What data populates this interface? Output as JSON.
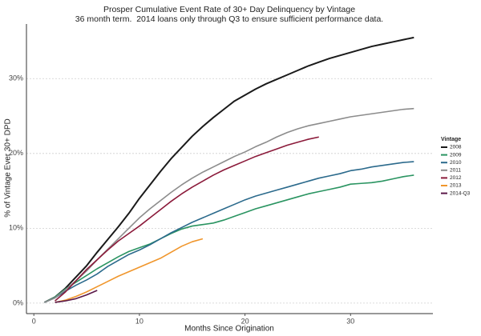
{
  "chart_data": {
    "type": "line",
    "title": "Prosper Cumulative Event Rate of 30+ Day Delinquency by Vintage",
    "subtitle": "36 month term.  2014 loans only through Q3 to ensure sufficient performance data.",
    "x_label": "Months Since Origination",
    "y_label": "% of Vintage Ever 30+ DPD",
    "legend_title": "Vintage",
    "legend": "right",
    "grid": true,
    "xlim": [
      -0.7,
      37.8
    ],
    "ylim": [
      -1.4,
      37.3
    ],
    "xticks": [
      0,
      10,
      20,
      30
    ],
    "yticks": [
      {
        "value": 0,
        "label": "0%"
      },
      {
        "value": 10,
        "label": "10%"
      },
      {
        "value": 20,
        "label": "20%"
      },
      {
        "value": 30,
        "label": "30%"
      }
    ],
    "x": [
      1,
      2,
      3,
      4,
      5,
      6,
      7,
      8,
      9,
      10,
      11,
      12,
      13,
      14,
      15,
      16,
      17,
      18,
      19,
      20,
      21,
      22,
      23,
      24,
      25,
      26,
      27,
      28,
      29,
      30,
      31,
      32,
      33,
      34,
      35,
      36
    ],
    "series": [
      {
        "name": "2008",
        "color": "#1a1a1a",
        "values": [
          0.1,
          0.8,
          2,
          3.5,
          5,
          6.8,
          8.5,
          10.2,
          12,
          14,
          15.8,
          17.6,
          19.3,
          20.8,
          22.3,
          23.6,
          24.8,
          25.9,
          27,
          27.8,
          28.6,
          29.3,
          29.9,
          30.5,
          31.1,
          31.7,
          32.2,
          32.7,
          33.1,
          33.5,
          33.9,
          34.3,
          34.6,
          34.9,
          35.2,
          35.5
        ]
      },
      {
        "name": "2009",
        "color": "#2a9461",
        "values": [
          0.1,
          0.8,
          1.9,
          2.8,
          3.7,
          4.6,
          5.4,
          6.2,
          6.9,
          7.4,
          7.9,
          8.6,
          9.3,
          9.9,
          10.3,
          10.5,
          10.7,
          11.1,
          11.6,
          12.1,
          12.6,
          13,
          13.4,
          13.8,
          14.2,
          14.6,
          14.9,
          15.2,
          15.5,
          15.9,
          16,
          16.1,
          16.3,
          16.6,
          16.9,
          17.1
        ]
      },
      {
        "name": "2010",
        "color": "#2b6a8c",
        "values": [
          0.1,
          0.7,
          1.6,
          2.4,
          3.1,
          3.9,
          4.9,
          5.7,
          6.5,
          7.1,
          7.8,
          8.6,
          9.4,
          10.1,
          10.8,
          11.4,
          12,
          12.6,
          13.2,
          13.8,
          14.3,
          14.7,
          15.1,
          15.5,
          15.9,
          16.3,
          16.7,
          17,
          17.3,
          17.7,
          17.9,
          18.2,
          18.4,
          18.6,
          18.8,
          18.9
        ]
      },
      {
        "name": "2011",
        "color": "#8c8c8c",
        "values": [
          0.1,
          0.7,
          1.8,
          3,
          4.3,
          5.8,
          7.2,
          8.6,
          10,
          11.4,
          12.6,
          13.7,
          14.8,
          15.8,
          16.7,
          17.5,
          18.2,
          18.9,
          19.6,
          20.2,
          20.9,
          21.5,
          22.2,
          22.8,
          23.3,
          23.7,
          24,
          24.3,
          24.6,
          24.9,
          25.1,
          25.3,
          25.5,
          25.7,
          25.9,
          26
        ]
      },
      {
        "name": "2012",
        "color": "#8b1a3a",
        "values": [
          null,
          0.3,
          1.5,
          3,
          4.5,
          5.8,
          7.1,
          8.3,
          9.3,
          10.3,
          11.4,
          12.5,
          13.6,
          14.6,
          15.5,
          16.3,
          17.1,
          17.8,
          18.4,
          19,
          19.6,
          20.1,
          20.6,
          21.1,
          21.5,
          21.9,
          22.2,
          null,
          null,
          null,
          null,
          null,
          null,
          null,
          null,
          null
        ]
      },
      {
        "name": "2013",
        "color": "#f0962c",
        "values": [
          null,
          0.1,
          0.4,
          0.9,
          1.5,
          2.2,
          2.9,
          3.6,
          4.2,
          4.8,
          5.4,
          6,
          6.8,
          7.6,
          8.2,
          8.6,
          null,
          null,
          null,
          null,
          null,
          null,
          null,
          null,
          null,
          null,
          null,
          null,
          null,
          null,
          null,
          null,
          null,
          null,
          null,
          null
        ]
      },
      {
        "name": "2014-Q3",
        "color": "#5a1848",
        "values": [
          null,
          0.1,
          0.3,
          0.6,
          1.1,
          1.7,
          null,
          null,
          null,
          null,
          null,
          null,
          null,
          null,
          null,
          null,
          null,
          null,
          null,
          null,
          null,
          null,
          null,
          null,
          null,
          null,
          null,
          null,
          null,
          null,
          null,
          null,
          null,
          null,
          null,
          null
        ]
      }
    ]
  }
}
